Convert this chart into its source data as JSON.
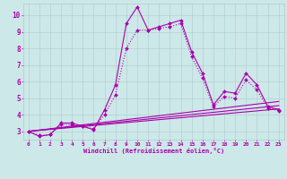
{
  "xlabel": "Windchill (Refroidissement éolien,°C)",
  "ylabel": "",
  "xlim": [
    -0.5,
    23.5
  ],
  "ylim": [
    2.5,
    10.7
  ],
  "xticks": [
    0,
    1,
    2,
    3,
    4,
    5,
    6,
    7,
    8,
    9,
    10,
    11,
    12,
    13,
    14,
    15,
    16,
    17,
    18,
    19,
    20,
    21,
    22,
    23
  ],
  "yticks": [
    3,
    4,
    5,
    6,
    7,
    8,
    9,
    10
  ],
  "bg_color": "#cde8e8",
  "line_color": "#aa00aa",
  "grid_color": "#aacccc",
  "lines": [
    {
      "x": [
        0,
        1,
        2,
        3,
        4,
        5,
        6,
        7,
        8,
        9,
        10,
        11,
        12,
        13,
        14,
        15,
        16,
        17,
        18,
        19,
        20,
        21,
        22,
        23
      ],
      "y": [
        3.0,
        2.7,
        2.8,
        3.5,
        3.5,
        3.3,
        3.1,
        4.3,
        5.8,
        9.5,
        10.5,
        9.1,
        9.3,
        9.5,
        9.7,
        7.8,
        6.5,
        4.6,
        5.4,
        5.3,
        6.5,
        5.8,
        4.5,
        4.3
      ],
      "style": "-",
      "marker": "D",
      "markersize": 2.0,
      "linewidth": 0.8,
      "dotted": false
    },
    {
      "x": [
        0,
        1,
        2,
        3,
        4,
        5,
        6,
        7,
        8,
        9,
        10,
        11,
        12,
        13,
        14,
        15,
        16,
        17,
        18,
        19,
        20,
        21,
        22,
        23
      ],
      "y": [
        3.0,
        2.75,
        2.8,
        3.4,
        3.4,
        3.3,
        3.15,
        4.0,
        5.2,
        8.0,
        9.1,
        9.1,
        9.2,
        9.3,
        9.5,
        7.5,
        6.2,
        4.5,
        5.1,
        5.0,
        6.1,
        5.5,
        4.4,
        4.25
      ],
      "style": ":",
      "marker": "D",
      "markersize": 2.0,
      "linewidth": 0.8,
      "dotted": true
    },
    {
      "x": [
        0,
        23
      ],
      "y": [
        3.0,
        4.35
      ],
      "style": "-",
      "marker": null,
      "markersize": 0,
      "linewidth": 0.8,
      "dotted": false
    },
    {
      "x": [
        0,
        23
      ],
      "y": [
        3.0,
        4.55
      ],
      "style": "-",
      "marker": null,
      "markersize": 0,
      "linewidth": 0.8,
      "dotted": false
    },
    {
      "x": [
        0,
        23
      ],
      "y": [
        3.0,
        4.8
      ],
      "style": "-",
      "marker": null,
      "markersize": 0,
      "linewidth": 0.8,
      "dotted": false
    }
  ]
}
